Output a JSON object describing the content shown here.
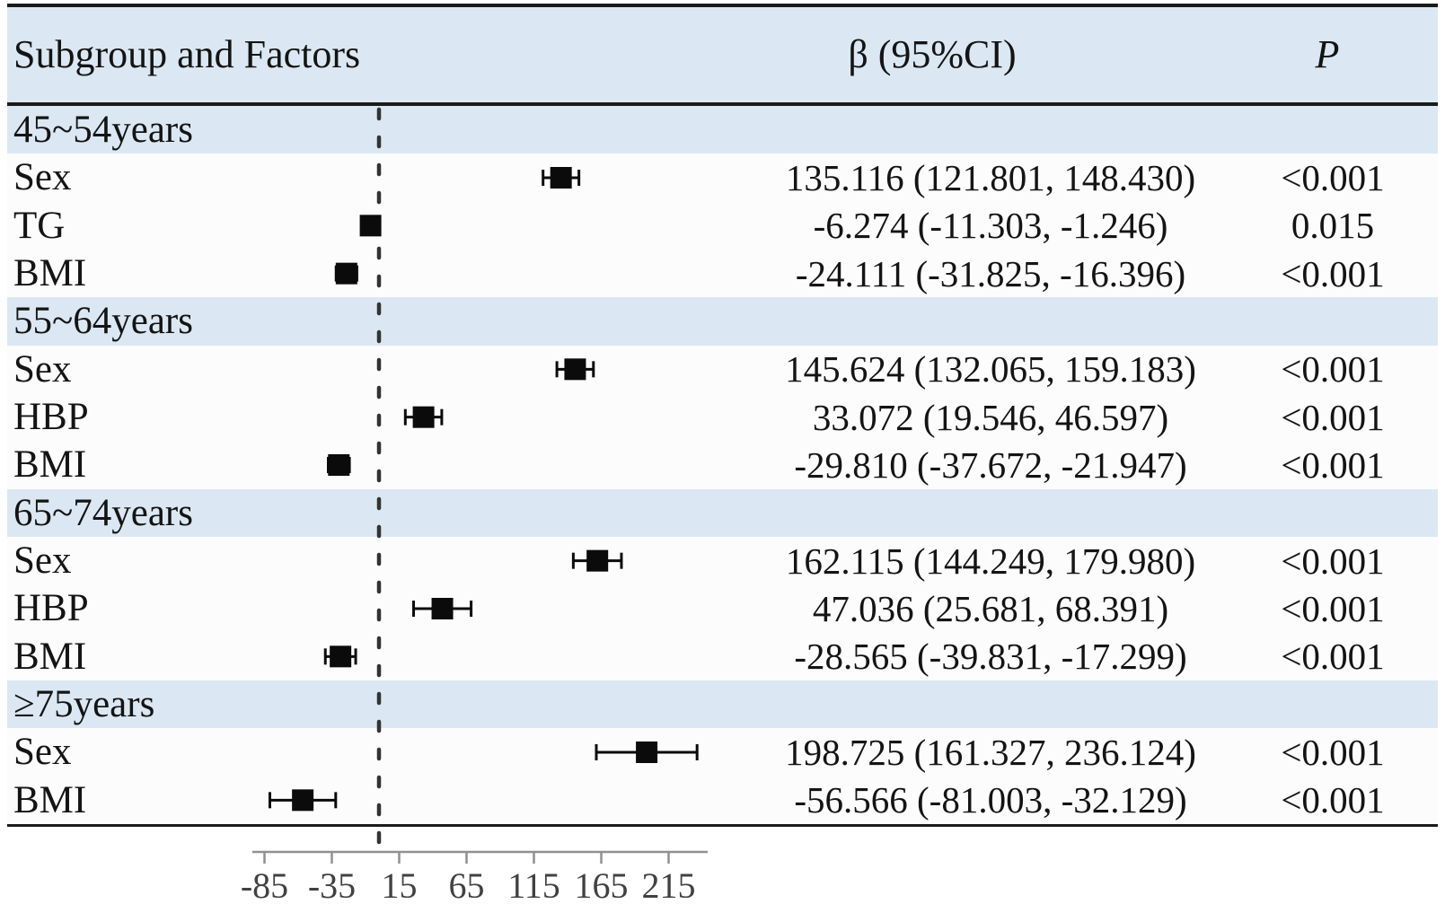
{
  "header": {
    "col1": "Subgroup and Factors",
    "col2": "β (95%CI)",
    "col3": "P"
  },
  "table": {
    "rows": [
      {
        "type": "subgroup",
        "label": "45~54years"
      },
      {
        "type": "factor",
        "label": "Sex",
        "beta": "135.116 (121.801, 148.430)",
        "p": "<0.001",
        "est": 135.116,
        "lo": 121.801,
        "hi": 148.43
      },
      {
        "type": "factor",
        "label": "TG",
        "beta": "-6.274 (-11.303, -1.246)",
        "p": "0.015",
        "est": -6.274,
        "lo": -11.303,
        "hi": -1.246
      },
      {
        "type": "factor",
        "label": "BMI",
        "beta": "-24.111 (-31.825, -16.396)",
        "p": "<0.001",
        "est": -24.111,
        "lo": -31.825,
        "hi": -16.396
      },
      {
        "type": "subgroup",
        "label": "55~64years"
      },
      {
        "type": "factor",
        "label": "Sex",
        "beta": "145.624 (132.065, 159.183)",
        "p": "<0.001",
        "est": 145.624,
        "lo": 132.065,
        "hi": 159.183
      },
      {
        "type": "factor",
        "label": "HBP",
        "beta": "33.072 (19.546, 46.597)",
        "p": "<0.001",
        "est": 33.072,
        "lo": 19.546,
        "hi": 46.597
      },
      {
        "type": "factor",
        "label": "BMI",
        "beta": "-29.810 (-37.672, -21.947)",
        "p": "<0.001",
        "est": -29.81,
        "lo": -37.672,
        "hi": -21.947
      },
      {
        "type": "subgroup",
        "label": "65~74years"
      },
      {
        "type": "factor",
        "label": "Sex",
        "beta": "162.115 (144.249, 179.980)",
        "p": "<0.001",
        "est": 162.115,
        "lo": 144.249,
        "hi": 179.98
      },
      {
        "type": "factor",
        "label": "HBP",
        "beta": "47.036 (25.681, 68.391)",
        "p": "<0.001",
        "est": 47.036,
        "lo": 25.681,
        "hi": 68.391
      },
      {
        "type": "factor",
        "label": "BMI",
        "beta": "-28.565 (-39.831, -17.299)",
        "p": "<0.001",
        "est": -28.565,
        "lo": -39.831,
        "hi": -17.299
      },
      {
        "type": "subgroup",
        "label": "≥75years"
      },
      {
        "type": "factor",
        "label": "Sex",
        "beta": "198.725 (161.327, 236.124)",
        "p": "<0.001",
        "est": 198.725,
        "lo": 161.327,
        "hi": 236.124
      },
      {
        "type": "factor",
        "label": "BMI",
        "beta": "-56.566 (-81.003, -32.129)",
        "p": "<0.001",
        "est": -56.566,
        "lo": -81.003,
        "hi": -32.129
      }
    ]
  },
  "chart_data": {
    "type": "forest",
    "title": "",
    "xlabel": "",
    "xticks": [
      -85,
      -35,
      15,
      65,
      115,
      165,
      215
    ],
    "xrange": [
      -94,
      244
    ],
    "reference_line": 0,
    "grid": false,
    "groups": [
      {
        "subgroup": "45~54years",
        "points": [
          {
            "factor": "Sex",
            "beta": 135.116,
            "ci": [
              121.801,
              148.43
            ],
            "p": "<0.001"
          },
          {
            "factor": "TG",
            "beta": -6.274,
            "ci": [
              -11.303,
              -1.246
            ],
            "p": "0.015"
          },
          {
            "factor": "BMI",
            "beta": -24.111,
            "ci": [
              -31.825,
              -16.396
            ],
            "p": "<0.001"
          }
        ]
      },
      {
        "subgroup": "55~64years",
        "points": [
          {
            "factor": "Sex",
            "beta": 145.624,
            "ci": [
              132.065,
              159.183
            ],
            "p": "<0.001"
          },
          {
            "factor": "HBP",
            "beta": 33.072,
            "ci": [
              19.546,
              46.597
            ],
            "p": "<0.001"
          },
          {
            "factor": "BMI",
            "beta": -29.81,
            "ci": [
              -37.672,
              -21.947
            ],
            "p": "<0.001"
          }
        ]
      },
      {
        "subgroup": "65~74years",
        "points": [
          {
            "factor": "Sex",
            "beta": 162.115,
            "ci": [
              144.249,
              179.98
            ],
            "p": "<0.001"
          },
          {
            "factor": "HBP",
            "beta": 47.036,
            "ci": [
              25.681,
              68.391
            ],
            "p": "<0.001"
          },
          {
            "factor": "BMI",
            "beta": -28.565,
            "ci": [
              -39.831,
              -17.299
            ],
            "p": "<0.001"
          }
        ]
      },
      {
        "subgroup": "≥75years",
        "points": [
          {
            "factor": "Sex",
            "beta": 198.725,
            "ci": [
              161.327,
              236.124
            ],
            "p": "<0.001"
          },
          {
            "factor": "BMI",
            "beta": -56.566,
            "ci": [
              -81.003,
              -32.129
            ],
            "p": "<0.001"
          }
        ]
      }
    ]
  },
  "colors": {
    "band_blue": "#dbe8f3",
    "row_white": "#fcfcfc",
    "border_black": "#1b1b1b",
    "axis_gray": "#909090",
    "marker_black": "#0b0b0b",
    "tick_label": "#414141",
    "ref_line": "#333333"
  }
}
